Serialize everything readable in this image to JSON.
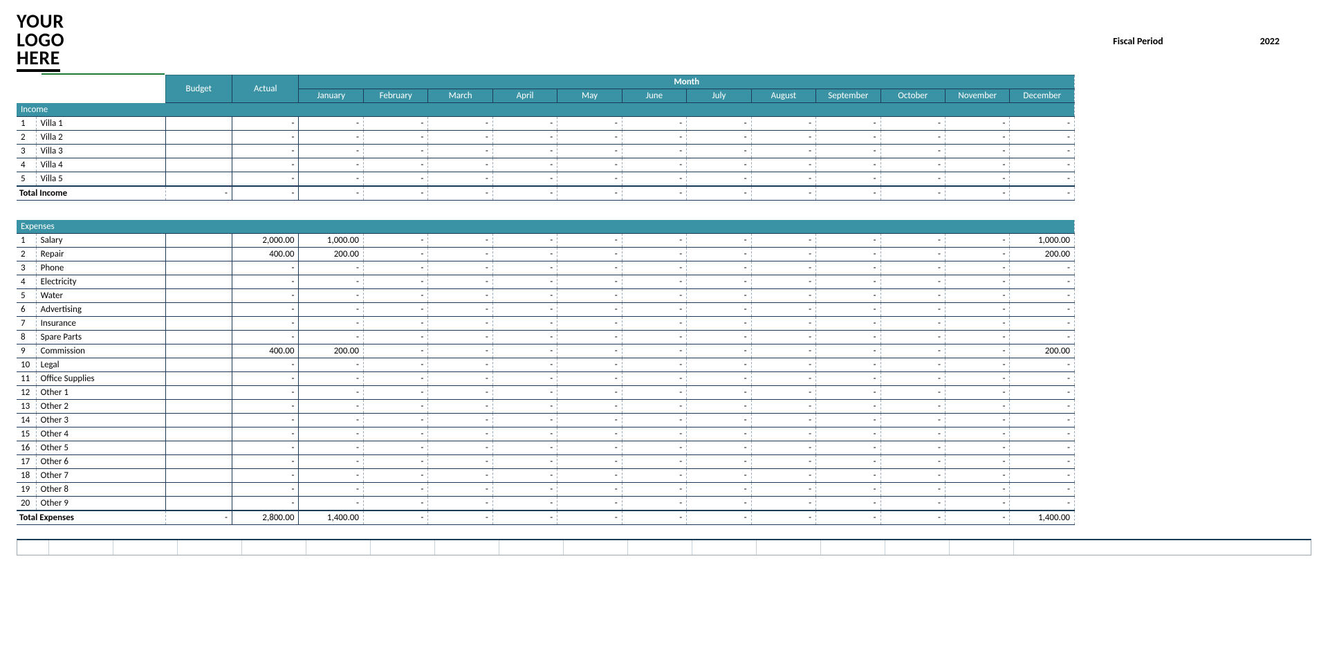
{
  "logo_text_1": "YOUR",
  "logo_text_2": "LOGO",
  "logo_text_3": "HERE",
  "fiscal_label": "Fiscal Period",
  "fiscal_value": "2022",
  "colors": {
    "header_bg": "#3a93a5",
    "header_fg": "#ffffff",
    "grid_border": "#1b3a57",
    "dashed_border": "#9aa6b2",
    "green_accent": "#1f7a3a",
    "page_bg": "#ffffff"
  },
  "headers": {
    "budget": "Budget",
    "actual": "Actual",
    "month_group": "Month",
    "months": [
      "January",
      "February",
      "March",
      "April",
      "May",
      "June",
      "July",
      "August",
      "September",
      "October",
      "November",
      "December"
    ]
  },
  "placeholder": "-",
  "income": {
    "title": "Income",
    "rows": [
      {
        "n": "1",
        "label": "Villa 1",
        "budget": "",
        "actual": "-",
        "months": [
          "-",
          "-",
          "-",
          "-",
          "-",
          "-",
          "-",
          "-",
          "-",
          "-",
          "-",
          "-"
        ]
      },
      {
        "n": "2",
        "label": "Villa 2",
        "budget": "",
        "actual": "-",
        "months": [
          "-",
          "-",
          "-",
          "-",
          "-",
          "-",
          "-",
          "-",
          "-",
          "-",
          "-",
          "-"
        ]
      },
      {
        "n": "3",
        "label": "Villa 3",
        "budget": "",
        "actual": "-",
        "months": [
          "-",
          "-",
          "-",
          "-",
          "-",
          "-",
          "-",
          "-",
          "-",
          "-",
          "-",
          "-"
        ]
      },
      {
        "n": "4",
        "label": "Villa 4",
        "budget": "",
        "actual": "-",
        "months": [
          "-",
          "-",
          "-",
          "-",
          "-",
          "-",
          "-",
          "-",
          "-",
          "-",
          "-",
          "-"
        ]
      },
      {
        "n": "5",
        "label": "Villa 5",
        "budget": "",
        "actual": "-",
        "months": [
          "-",
          "-",
          "-",
          "-",
          "-",
          "-",
          "-",
          "-",
          "-",
          "-",
          "-",
          "-"
        ]
      }
    ],
    "total": {
      "label": "Total Income",
      "budget": "-",
      "actual": "-",
      "months": [
        "-",
        "-",
        "-",
        "-",
        "-",
        "-",
        "-",
        "-",
        "-",
        "-",
        "-",
        "-"
      ]
    }
  },
  "expenses": {
    "title": "Expenses",
    "rows": [
      {
        "n": "1",
        "label": "Salary",
        "budget": "",
        "actual": "2,000.00",
        "months": [
          "1,000.00",
          "-",
          "-",
          "-",
          "-",
          "-",
          "-",
          "-",
          "-",
          "-",
          "-",
          "1,000.00"
        ]
      },
      {
        "n": "2",
        "label": "Repair",
        "budget": "",
        "actual": "400.00",
        "months": [
          "200.00",
          "-",
          "-",
          "-",
          "-",
          "-",
          "-",
          "-",
          "-",
          "-",
          "-",
          "200.00"
        ]
      },
      {
        "n": "3",
        "label": "Phone",
        "budget": "",
        "actual": "-",
        "months": [
          "-",
          "-",
          "-",
          "-",
          "-",
          "-",
          "-",
          "-",
          "-",
          "-",
          "-",
          "-"
        ]
      },
      {
        "n": "4",
        "label": "Electricity",
        "budget": "",
        "actual": "-",
        "months": [
          "-",
          "-",
          "-",
          "-",
          "-",
          "-",
          "-",
          "-",
          "-",
          "-",
          "-",
          "-"
        ]
      },
      {
        "n": "5",
        "label": "Water",
        "budget": "",
        "actual": "-",
        "months": [
          "-",
          "-",
          "-",
          "-",
          "-",
          "-",
          "-",
          "-",
          "-",
          "-",
          "-",
          "-"
        ]
      },
      {
        "n": "6",
        "label": "Advertising",
        "budget": "",
        "actual": "-",
        "months": [
          "-",
          "-",
          "-",
          "-",
          "-",
          "-",
          "-",
          "-",
          "-",
          "-",
          "-",
          "-"
        ]
      },
      {
        "n": "7",
        "label": "Insurance",
        "budget": "",
        "actual": "-",
        "months": [
          "-",
          "-",
          "-",
          "-",
          "-",
          "-",
          "-",
          "-",
          "-",
          "-",
          "-",
          "-"
        ]
      },
      {
        "n": "8",
        "label": "Spare Parts",
        "budget": "",
        "actual": "-",
        "months": [
          "-",
          "-",
          "-",
          "-",
          "-",
          "-",
          "-",
          "-",
          "-",
          "-",
          "-",
          "-"
        ]
      },
      {
        "n": "9",
        "label": "Commission",
        "budget": "",
        "actual": "400.00",
        "months": [
          "200.00",
          "-",
          "-",
          "-",
          "-",
          "-",
          "-",
          "-",
          "-",
          "-",
          "-",
          "200.00"
        ]
      },
      {
        "n": "10",
        "label": "Legal",
        "budget": "",
        "actual": "-",
        "months": [
          "-",
          "-",
          "-",
          "-",
          "-",
          "-",
          "-",
          "-",
          "-",
          "-",
          "-",
          "-"
        ]
      },
      {
        "n": "11",
        "label": "Office Supplies",
        "budget": "",
        "actual": "-",
        "months": [
          "-",
          "-",
          "-",
          "-",
          "-",
          "-",
          "-",
          "-",
          "-",
          "-",
          "-",
          "-"
        ]
      },
      {
        "n": "12",
        "label": "Other 1",
        "budget": "",
        "actual": "-",
        "months": [
          "-",
          "-",
          "-",
          "-",
          "-",
          "-",
          "-",
          "-",
          "-",
          "-",
          "-",
          "-"
        ]
      },
      {
        "n": "13",
        "label": "Other 2",
        "budget": "",
        "actual": "-",
        "months": [
          "-",
          "-",
          "-",
          "-",
          "-",
          "-",
          "-",
          "-",
          "-",
          "-",
          "-",
          "-"
        ]
      },
      {
        "n": "14",
        "label": "Other 3",
        "budget": "",
        "actual": "-",
        "months": [
          "-",
          "-",
          "-",
          "-",
          "-",
          "-",
          "-",
          "-",
          "-",
          "-",
          "-",
          "-"
        ]
      },
      {
        "n": "15",
        "label": "Other 4",
        "budget": "",
        "actual": "-",
        "months": [
          "-",
          "-",
          "-",
          "-",
          "-",
          "-",
          "-",
          "-",
          "-",
          "-",
          "-",
          "-"
        ]
      },
      {
        "n": "16",
        "label": "Other 5",
        "budget": "",
        "actual": "-",
        "months": [
          "-",
          "-",
          "-",
          "-",
          "-",
          "-",
          "-",
          "-",
          "-",
          "-",
          "-",
          "-"
        ]
      },
      {
        "n": "17",
        "label": "Other 6",
        "budget": "",
        "actual": "-",
        "months": [
          "-",
          "-",
          "-",
          "-",
          "-",
          "-",
          "-",
          "-",
          "-",
          "-",
          "-",
          "-"
        ]
      },
      {
        "n": "18",
        "label": "Other 7",
        "budget": "",
        "actual": "-",
        "months": [
          "-",
          "-",
          "-",
          "-",
          "-",
          "-",
          "-",
          "-",
          "-",
          "-",
          "-",
          "-"
        ]
      },
      {
        "n": "19",
        "label": "Other 8",
        "budget": "",
        "actual": "-",
        "months": [
          "-",
          "-",
          "-",
          "-",
          "-",
          "-",
          "-",
          "-",
          "-",
          "-",
          "-",
          "-"
        ]
      },
      {
        "n": "20",
        "label": "Other 9",
        "budget": "",
        "actual": "-",
        "months": [
          "-",
          "-",
          "-",
          "-",
          "-",
          "-",
          "-",
          "-",
          "-",
          "-",
          "-",
          "-"
        ]
      }
    ],
    "total": {
      "label": "Total Expenses",
      "budget": "-",
      "actual": "2,800.00",
      "months": [
        "1,400.00",
        "-",
        "-",
        "-",
        "-",
        "-",
        "-",
        "-",
        "-",
        "-",
        "-",
        "1,400.00"
      ]
    }
  }
}
